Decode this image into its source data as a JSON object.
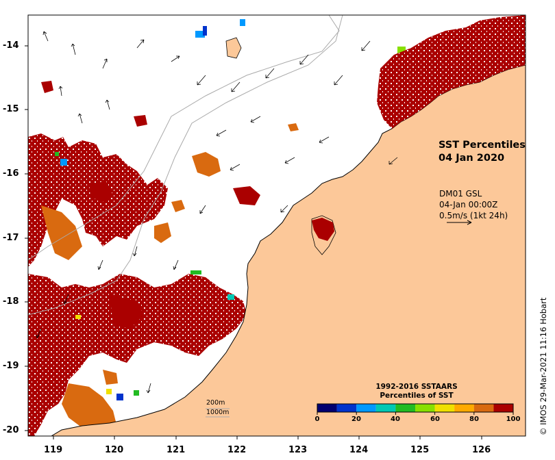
{
  "title": {
    "line1": "SST Percentiles",
    "line2": "04 Jan 2020"
  },
  "current_info": {
    "source": "DM01 GSL",
    "time": "04-Jan 00:00Z",
    "scale": "0.5m/s (1kt 24h)"
  },
  "depth_contours": {
    "shallow": "200m",
    "deep": "1000m"
  },
  "colorbar": {
    "title_line1": "1992-2016 SSTAARS",
    "title_line2": "Percentiles of SST",
    "ticks": [
      "0",
      "20",
      "40",
      "60",
      "80",
      "100"
    ],
    "colors": [
      "#000070",
      "#0033cc",
      "#0099ff",
      "#00c8b4",
      "#22bb22",
      "#88e000",
      "#f0e000",
      "#ffaa00",
      "#d96a10",
      "#aa0000"
    ]
  },
  "axes": {
    "x_ticks": [
      "119",
      "120",
      "121",
      "122",
      "123",
      "124",
      "125",
      "126"
    ],
    "y_ticks": [
      "-14",
      "-15",
      "-16",
      "-17",
      "-18",
      "-19",
      "-20"
    ],
    "lon_range": [
      118.6,
      126.8
    ],
    "lat_range": [
      -20.1,
      -13.5
    ]
  },
  "colors": {
    "land": "#fcc899",
    "anomaly_high": "#aa0000",
    "anomaly_mid": "#d96a10",
    "coast": "#000000",
    "bathymetry": "#aaaaaa"
  },
  "credit": "© IMOS 29-Mar-2021 11:16 Hobart"
}
